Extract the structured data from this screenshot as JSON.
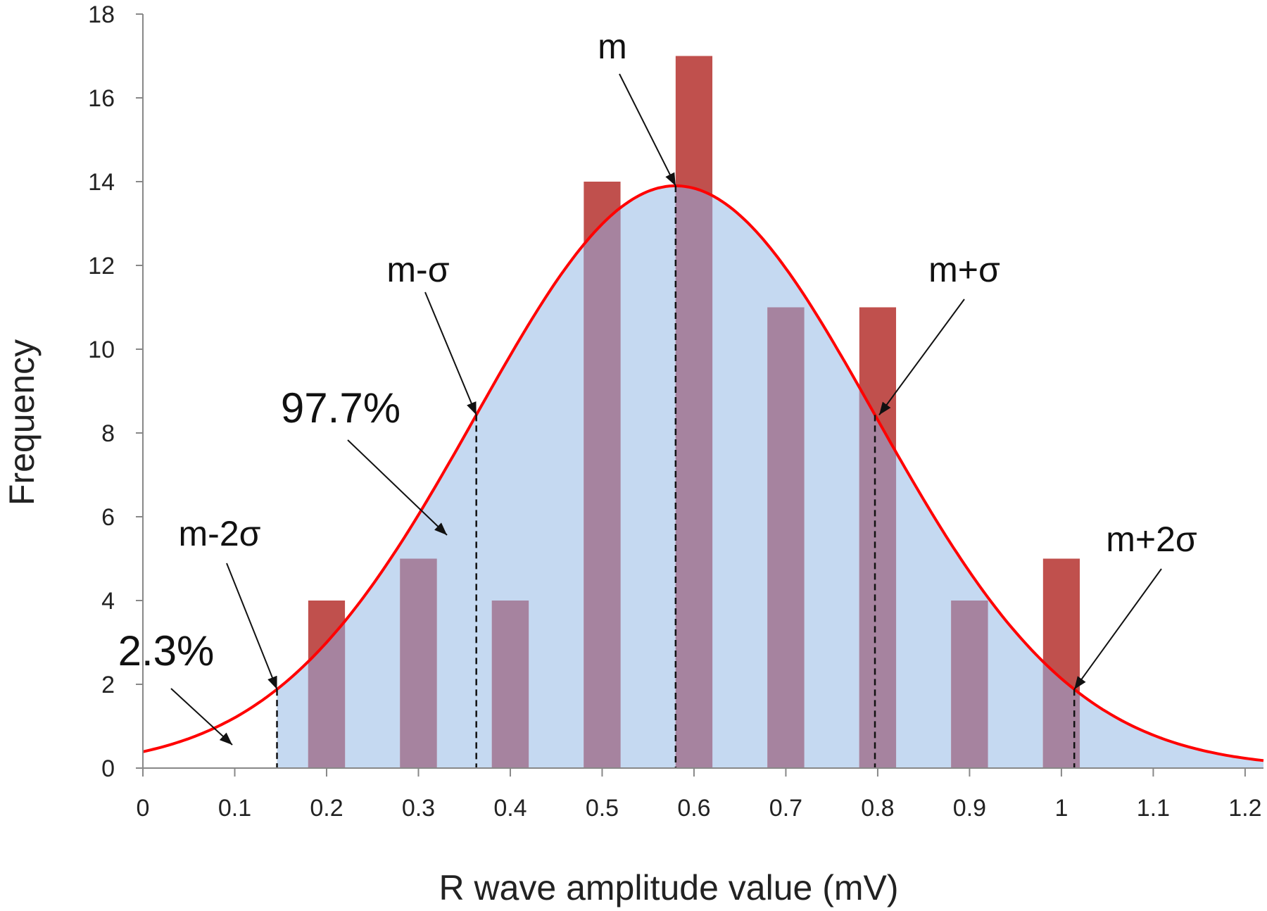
{
  "chart_data": {
    "type": "bar",
    "title": "",
    "xlabel": "R wave amplitude value (mV)",
    "ylabel": "Frequency",
    "xlim": [
      0,
      1.22
    ],
    "ylim": [
      0,
      18
    ],
    "x_ticks": [
      "0",
      "0.1",
      "0.2",
      "0.3",
      "0.4",
      "0.5",
      "0.6",
      "0.7",
      "0.8",
      "0.9",
      "1",
      "1.1",
      "1.2"
    ],
    "y_ticks": [
      "0",
      "2",
      "4",
      "6",
      "8",
      "10",
      "12",
      "14",
      "16",
      "18"
    ],
    "grid": false,
    "legend": "none",
    "bars": {
      "x": [
        0.2,
        0.3,
        0.4,
        0.5,
        0.6,
        0.7,
        0.8,
        0.9,
        1.0
      ],
      "values": [
        4,
        5,
        4,
        14,
        17,
        11,
        11,
        4,
        5
      ],
      "width": 0.04,
      "color": "#c0504d"
    },
    "normal_curve": {
      "mean": 0.58,
      "sigma": 0.217,
      "peak": 13.9,
      "color": "#ff0000",
      "fill": "#c5d9f1"
    },
    "markers": [
      {
        "label": "m-2σ",
        "x": 0.146
      },
      {
        "label": "m-σ",
        "x": 0.363
      },
      {
        "label": "m",
        "x": 0.58
      },
      {
        "label": "m+σ",
        "x": 0.797
      },
      {
        "label": "m+2σ",
        "x": 1.014
      }
    ],
    "annotations": [
      {
        "text": "2.3%"
      },
      {
        "text": "97.7%"
      }
    ]
  }
}
